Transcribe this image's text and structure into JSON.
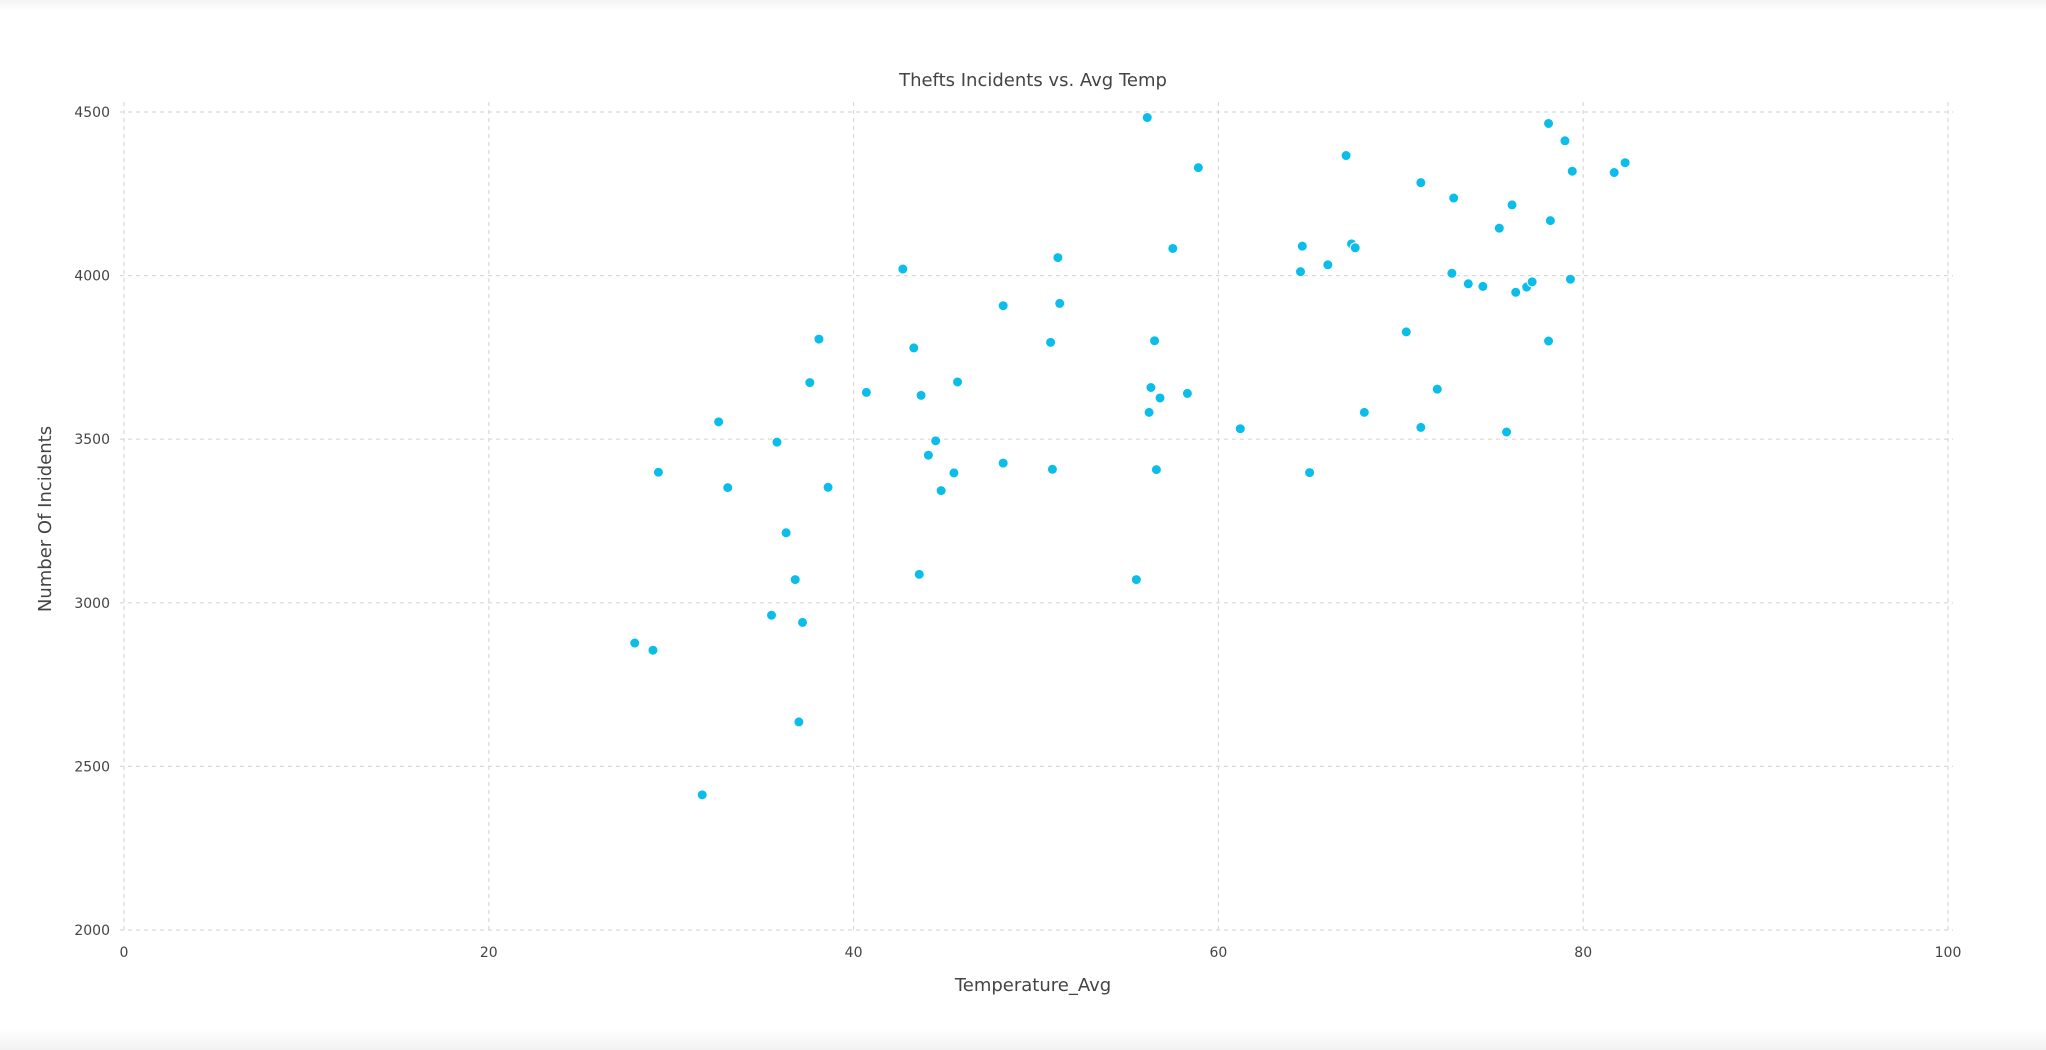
{
  "colors": {
    "marker": "#0bbdea",
    "grid": "#d9d9d9",
    "text": "#444444"
  },
  "chart_data": {
    "type": "scatter",
    "title": "Thefts Incidents vs. Avg Temp",
    "xlabel": "Temperature_Avg",
    "ylabel": "Number Of Incidents",
    "xlim": [
      0,
      100
    ],
    "ylim": [
      2000,
      4500
    ],
    "x_ticks": [
      0,
      20,
      40,
      60,
      80,
      100
    ],
    "y_ticks": [
      2000,
      2500,
      3000,
      3500,
      4000,
      4500
    ],
    "grid": true,
    "legend": "none",
    "points": [
      [
        28.0,
        2877
      ],
      [
        29.0,
        2855
      ],
      [
        29.3,
        3399
      ],
      [
        31.7,
        2413
      ],
      [
        32.6,
        3553
      ],
      [
        33.1,
        3352
      ],
      [
        35.5,
        2962
      ],
      [
        35.8,
        3491
      ],
      [
        36.3,
        3214
      ],
      [
        36.8,
        3071
      ],
      [
        37.0,
        2636
      ],
      [
        37.2,
        2940
      ],
      [
        37.6,
        3673
      ],
      [
        38.1,
        3806
      ],
      [
        38.6,
        3353
      ],
      [
        40.7,
        3643
      ],
      [
        42.7,
        4020
      ],
      [
        43.3,
        3779
      ],
      [
        43.6,
        3087
      ],
      [
        43.7,
        3634
      ],
      [
        44.1,
        3451
      ],
      [
        44.5,
        3495
      ],
      [
        44.8,
        3343
      ],
      [
        45.5,
        3397
      ],
      [
        45.7,
        3675
      ],
      [
        48.2,
        3427
      ],
      [
        48.2,
        3908
      ],
      [
        50.8,
        3796
      ],
      [
        50.9,
        3408
      ],
      [
        51.2,
        4055
      ],
      [
        51.3,
        3915
      ],
      [
        55.5,
        3071
      ],
      [
        56.1,
        4483
      ],
      [
        56.2,
        3582
      ],
      [
        56.3,
        3658
      ],
      [
        56.5,
        3801
      ],
      [
        56.6,
        3407
      ],
      [
        56.8,
        3626
      ],
      [
        57.5,
        4083
      ],
      [
        58.3,
        3640
      ],
      [
        58.9,
        4330
      ],
      [
        61.2,
        3532
      ],
      [
        64.5,
        4012
      ],
      [
        64.6,
        4090
      ],
      [
        65.0,
        3398
      ],
      [
        66.0,
        4033
      ],
      [
        67.0,
        4367
      ],
      [
        67.3,
        4097
      ],
      [
        67.5,
        4085
      ],
      [
        68.0,
        3582
      ],
      [
        70.3,
        3828
      ],
      [
        71.1,
        3536
      ],
      [
        71.1,
        4284
      ],
      [
        72.0,
        3653
      ],
      [
        72.8,
        4007
      ],
      [
        72.9,
        4237
      ],
      [
        73.7,
        3975
      ],
      [
        74.5,
        3967
      ],
      [
        75.4,
        4145
      ],
      [
        75.8,
        3522
      ],
      [
        76.1,
        4216
      ],
      [
        76.3,
        3949
      ],
      [
        76.9,
        3965
      ],
      [
        77.2,
        3981
      ],
      [
        78.1,
        4465
      ],
      [
        78.1,
        3800
      ],
      [
        78.2,
        4168
      ],
      [
        79.0,
        4412
      ],
      [
        79.3,
        3989
      ],
      [
        79.4,
        4319
      ],
      [
        81.7,
        4315
      ],
      [
        82.3,
        4345
      ]
    ]
  }
}
